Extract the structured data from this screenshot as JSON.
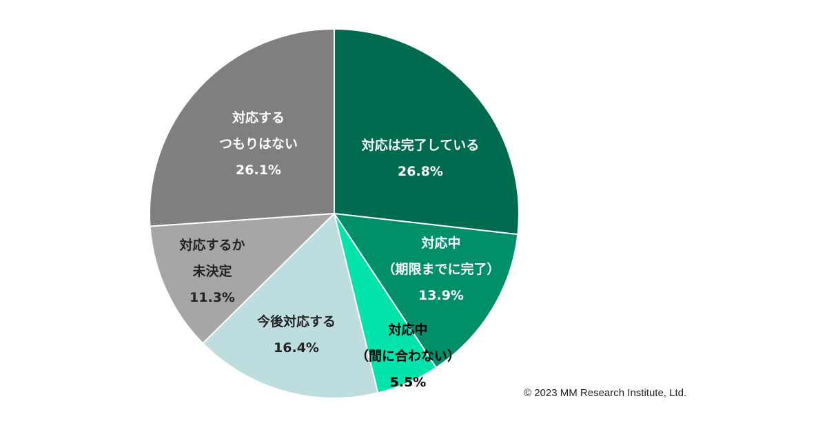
{
  "chart_data": {
    "type": "pie",
    "start": "top, clockwise",
    "slices": [
      {
        "label": [
          "対応は完了している"
        ],
        "value": 26.8,
        "value_label": "26.8%",
        "color": "#006B4F",
        "text_color": "#ffffff"
      },
      {
        "label": [
          "対応中",
          "（期限までに完了）"
        ],
        "value": 13.9,
        "value_label": "13.9%",
        "color": "#008F69",
        "text_color": "#ffffff"
      },
      {
        "label": [
          "対応中",
          "（間に合わない）"
        ],
        "value": 5.5,
        "value_label": "5.5%",
        "color": "#00E3AA",
        "text_color": "#000000"
      },
      {
        "label": [
          "今後対応する"
        ],
        "value": 16.4,
        "value_label": "16.4%",
        "color": "#BDDDDE",
        "text_color": "#222222"
      },
      {
        "label": [
          "対応するか",
          "未決定"
        ],
        "value": 11.3,
        "value_label": "11.3%",
        "color": "#A6A6A6",
        "text_color": "#222222"
      },
      {
        "label": [
          "対応する",
          "つもりはない"
        ],
        "value": 26.1,
        "value_label": "26.1%",
        "color": "#7F7F7F",
        "text_color": "#ffffff"
      }
    ]
  },
  "copyright": "© 2023  MM Research Institute, Ltd."
}
